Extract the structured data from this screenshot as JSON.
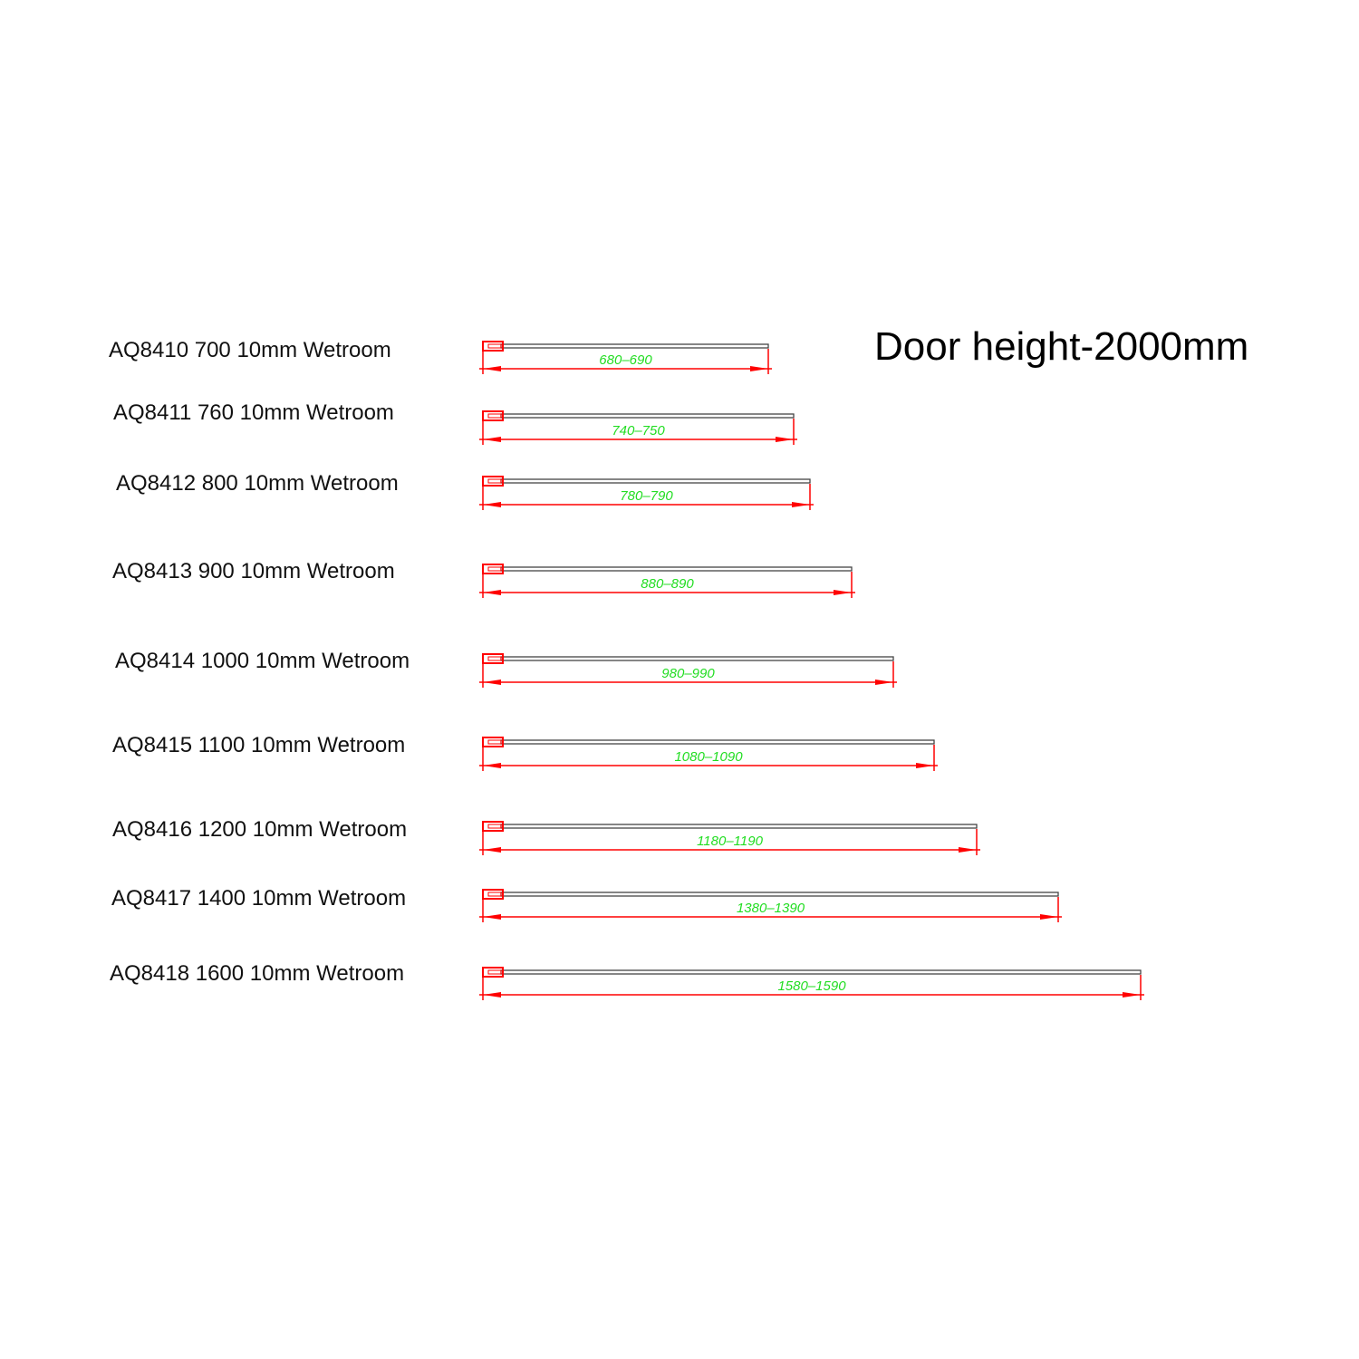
{
  "title": "Door height-2000mm",
  "colors": {
    "dimension_line": "#ff0000",
    "dimension_text": "#22dd22",
    "panel": "#444444"
  },
  "rows": [
    {
      "label": "AQ8410 700 10mm Wetroom",
      "range": "680-690"
    },
    {
      "label": "AQ8411 760 10mm Wetroom",
      "range": "740-750"
    },
    {
      "label": "AQ8412 800 10mm Wetroom",
      "range": "780-790"
    },
    {
      "label": "AQ8413 900 10mm Wetroom",
      "range": "880-890"
    },
    {
      "label": "AQ8414 1000 10mm Wetroom",
      "range": "980-990"
    },
    {
      "label": "AQ8415 1100 10mm Wetroom",
      "range": "1080-1090"
    },
    {
      "label": "AQ8416 1200 10mm Wetroom",
      "range": "1180-1190"
    },
    {
      "label": "AQ8417 1400 10mm Wetroom",
      "range": "1380-1390"
    },
    {
      "label": "AQ8418 1600 10mm Wetroom",
      "range": "1580-1590"
    }
  ]
}
